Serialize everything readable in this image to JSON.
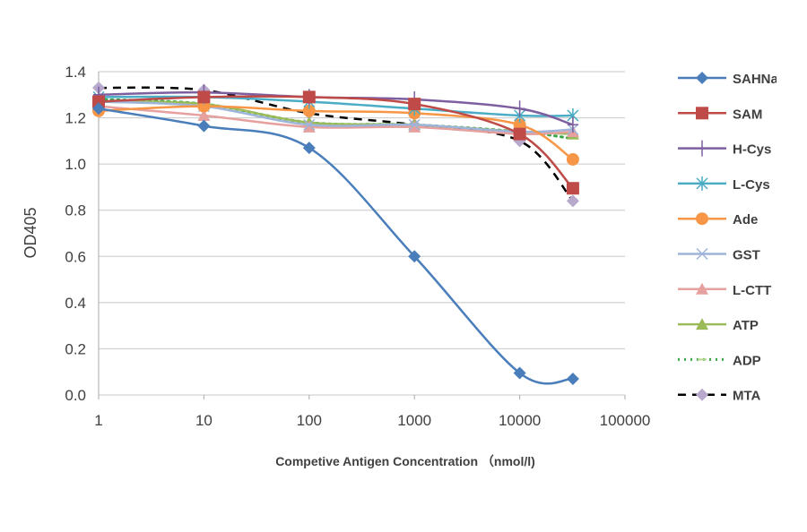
{
  "chart_data": {
    "type": "line",
    "title": "",
    "xlabel": "Competive Antigen Concentration （nmol/l)",
    "ylabel": "OD405",
    "x_scale": "log",
    "xlim": [
      1,
      100000
    ],
    "ylim": [
      0,
      1.4
    ],
    "x_ticks": [
      "1",
      "10",
      "100",
      "1000",
      "10000",
      "100000"
    ],
    "y_ticks": [
      "0.0",
      "0.2",
      "0.4",
      "0.6",
      "0.8",
      "1.0",
      "1.2",
      "1.4"
    ],
    "grid": "horizontal",
    "legend_position": "right",
    "x": [
      1,
      10,
      100,
      1000,
      10000,
      32000
    ],
    "series": [
      {
        "name": "SAHNa",
        "color": "#4a7ebb",
        "marker": "diamond",
        "dash": "solid",
        "values": [
          1.24,
          1.165,
          1.07,
          0.6,
          0.095,
          0.07
        ]
      },
      {
        "name": "SAM",
        "color": "#be4b48",
        "marker": "square",
        "dash": "solid",
        "values": [
          1.27,
          1.29,
          1.29,
          1.26,
          1.13,
          0.895
        ]
      },
      {
        "name": "H-Cys",
        "color": "#7d5fa0",
        "marker": "plus",
        "dash": "solid",
        "values": [
          1.3,
          1.31,
          1.29,
          1.28,
          1.24,
          1.17
        ]
      },
      {
        "name": "L-Cys",
        "color": "#4aacc5",
        "marker": "star",
        "dash": "solid",
        "values": [
          1.29,
          1.29,
          1.27,
          1.24,
          1.21,
          1.21
        ]
      },
      {
        "name": "Ade",
        "color": "#f79646",
        "marker": "circle",
        "dash": "solid",
        "values": [
          1.23,
          1.25,
          1.23,
          1.22,
          1.17,
          1.02
        ]
      },
      {
        "name": "GST",
        "color": "#9fb4d9",
        "marker": "x",
        "dash": "solid",
        "values": [
          1.27,
          1.25,
          1.17,
          1.17,
          1.14,
          1.15
        ]
      },
      {
        "name": "L-CTT",
        "color": "#e6a09e",
        "marker": "triangle",
        "dash": "solid",
        "values": [
          1.25,
          1.21,
          1.16,
          1.16,
          1.13,
          1.14
        ]
      },
      {
        "name": "ATP",
        "color": "#9bbb59",
        "marker": "triangle",
        "dash": "solid",
        "values": [
          1.27,
          1.26,
          1.18,
          1.17,
          1.14,
          1.13
        ]
      },
      {
        "name": "ADP",
        "color": "#3aa84a",
        "marker": "dash",
        "dash": "dot",
        "values": [
          1.28,
          1.26,
          1.18,
          1.17,
          1.14,
          1.11
        ]
      },
      {
        "name": "MTA",
        "color": "#000000",
        "marker_color": "#b8a8cc",
        "marker": "diamond",
        "dash": "dash",
        "values": [
          1.33,
          1.32,
          1.22,
          1.17,
          1.1,
          0.84
        ]
      }
    ]
  }
}
